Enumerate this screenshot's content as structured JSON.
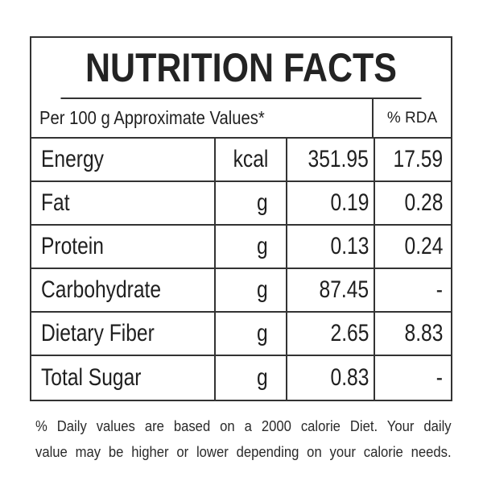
{
  "label": {
    "title": "NUTRITION FACTS",
    "subheader_left": "Per 100 g Approximate Values*",
    "subheader_right": "% RDA",
    "rows": [
      {
        "nutrient": "Energy",
        "unit": "kcal",
        "value": "351.95",
        "rda": "17.59"
      },
      {
        "nutrient": "Fat",
        "unit": "g",
        "value": "0.19",
        "rda": "0.28"
      },
      {
        "nutrient": "Protein",
        "unit": "g",
        "value": "0.13",
        "rda": "0.24"
      },
      {
        "nutrient": "Carbohydrate",
        "unit": "g",
        "value": "87.45",
        "rda": "-"
      },
      {
        "nutrient": "Dietary Fiber",
        "unit": "g",
        "value": "2.65",
        "rda": "8.83"
      },
      {
        "nutrient": "Total Sugar",
        "unit": "g",
        "value": "0.83",
        "rda": "-"
      }
    ],
    "footnote_line1": "% Daily values are based on a 2000 calorie Diet. Your daily",
    "footnote_line2": "value may be higher or lower depending on your calorie needs."
  }
}
